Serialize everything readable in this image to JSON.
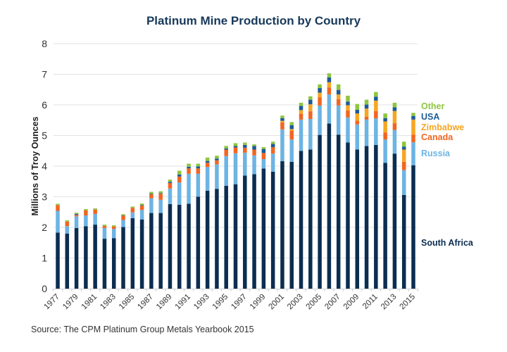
{
  "chart_data": {
    "type": "bar",
    "stacked": true,
    "title": "Platinum Mine Production by Country",
    "xlabel": "",
    "ylabel": "Millions of Troy Ounces",
    "ylim": [
      0,
      8
    ],
    "yticks": [
      "0",
      "1",
      "2",
      "3",
      "4",
      "5",
      "6",
      "7",
      "8"
    ],
    "grid": true,
    "legend_position": "right",
    "source": "Source: The CPM Platinum Group Metals Yearbook 2015",
    "categories": [
      "1977",
      "1978",
      "1979",
      "1980",
      "1981",
      "1982",
      "1983",
      "1984",
      "1985",
      "1986",
      "1987",
      "1988",
      "1989",
      "1990",
      "1991",
      "1992",
      "1993",
      "1994",
      "1995",
      "1996",
      "1997",
      "1998",
      "1999",
      "2000",
      "2001",
      "2002",
      "2003",
      "2004",
      "2005",
      "2006",
      "2007",
      "2008",
      "2009",
      "2010",
      "2011",
      "2012",
      "2013",
      "2014",
      "2015"
    ],
    "xtick_labels": [
      "1977",
      "1979",
      "1981",
      "1983",
      "1985",
      "1987",
      "1989",
      "1991",
      "1993",
      "1995",
      "1997",
      "1999",
      "2001",
      "2003",
      "2005",
      "2007",
      "2009",
      "2011",
      "2013",
      "2015"
    ],
    "series": [
      {
        "name": "South Africa",
        "color": "#0b2d50",
        "values": [
          1.83,
          1.8,
          1.98,
          2.04,
          2.09,
          1.63,
          1.65,
          2.01,
          2.3,
          2.26,
          2.47,
          2.47,
          2.76,
          2.74,
          2.77,
          3.0,
          3.2,
          3.26,
          3.36,
          3.41,
          3.69,
          3.74,
          3.92,
          3.82,
          4.16,
          4.14,
          4.5,
          4.54,
          5.02,
          5.39,
          5.03,
          4.77,
          4.54,
          4.66,
          4.69,
          4.11,
          4.41,
          3.06,
          4.03
        ]
      },
      {
        "name": "Russia",
        "color": "#6cb4e4",
        "values": [
          0.71,
          0.24,
          0.38,
          0.35,
          0.35,
          0.35,
          0.3,
          0.23,
          0.19,
          0.31,
          0.48,
          0.43,
          0.51,
          0.73,
          0.98,
          0.75,
          0.77,
          0.8,
          0.97,
          1.01,
          0.75,
          0.61,
          0.31,
          0.59,
          1.04,
          0.73,
          1.02,
          1.0,
          0.96,
          0.95,
          0.95,
          0.82,
          0.82,
          0.86,
          0.87,
          0.76,
          0.77,
          0.81,
          0.75
        ]
      },
      {
        "name": "Canada",
        "color": "#f26522",
        "values": [
          0.19,
          0.15,
          0.05,
          0.17,
          0.14,
          0.07,
          0.08,
          0.14,
          0.15,
          0.14,
          0.13,
          0.2,
          0.18,
          0.19,
          0.18,
          0.18,
          0.14,
          0.13,
          0.21,
          0.19,
          0.16,
          0.19,
          0.2,
          0.21,
          0.23,
          0.29,
          0.19,
          0.25,
          0.27,
          0.23,
          0.21,
          0.23,
          0.13,
          0.09,
          0.24,
          0.23,
          0.22,
          0.27,
          0.25
        ]
      },
      {
        "name": "Zimbabwe",
        "color": "#f5a623",
        "values": [
          0,
          0,
          0,
          0,
          0,
          0,
          0,
          0,
          0,
          0,
          0,
          0,
          0,
          0,
          0,
          0,
          0,
          0,
          0,
          0,
          0,
          0,
          0,
          0,
          0.05,
          0.05,
          0.12,
          0.23,
          0.15,
          0.17,
          0.15,
          0.17,
          0.23,
          0.27,
          0.34,
          0.36,
          0.4,
          0.4,
          0.49
        ]
      },
      {
        "name": "USA",
        "color": "#1c5b96",
        "values": [
          0,
          0,
          0.03,
          0,
          0,
          0,
          0,
          0.01,
          0,
          0.02,
          0.02,
          0.02,
          0.04,
          0.07,
          0.05,
          0.06,
          0.06,
          0.06,
          0.04,
          0.05,
          0.09,
          0.12,
          0.13,
          0.11,
          0.09,
          0.13,
          0.14,
          0.15,
          0.15,
          0.16,
          0.15,
          0.12,
          0.12,
          0.13,
          0.13,
          0.11,
          0.12,
          0.1,
          0.12
        ]
      },
      {
        "name": "Other",
        "color": "#8dc63f",
        "values": [
          0.04,
          0.04,
          0.04,
          0.04,
          0.04,
          0.04,
          0.04,
          0.04,
          0.04,
          0.05,
          0.06,
          0.06,
          0.07,
          0.12,
          0.1,
          0.09,
          0.11,
          0.09,
          0.08,
          0.09,
          0.08,
          0.05,
          0.06,
          0.07,
          0.08,
          0.1,
          0.1,
          0.11,
          0.12,
          0.13,
          0.18,
          0.19,
          0.19,
          0.16,
          0.15,
          0.15,
          0.15,
          0.16,
          0.1
        ]
      }
    ],
    "legend": [
      {
        "name": "Other",
        "color": "#8dc63f"
      },
      {
        "name": "USA",
        "color": "#1c5b96"
      },
      {
        "name": "Zimbabwe",
        "color": "#f5a623"
      },
      {
        "name": "Canada",
        "color": "#f26522"
      },
      {
        "name": "Russia",
        "color": "#6cb4e4"
      },
      {
        "name": "South Africa",
        "color": "#0b2d50"
      }
    ]
  },
  "colors": {
    "title": "#17395a",
    "gridline": "#e2e2e2",
    "axis_text": "#333333"
  }
}
